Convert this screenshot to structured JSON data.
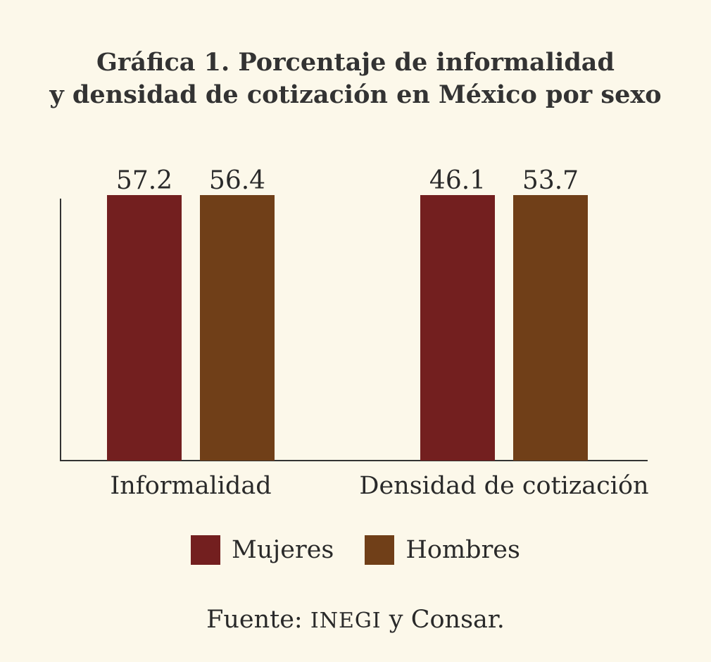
{
  "title_line1": "Gráfica 1. Porcentaje de informalidad",
  "title_line2": "y densidad de cotización en México por sexo",
  "chart_data": {
    "type": "bar",
    "title": "Gráfica 1. Porcentaje de informalidad y densidad de cotización en México por sexo",
    "categories": [
      "Informalidad",
      "Densidad de cotización"
    ],
    "series": [
      {
        "name": "Mujeres",
        "color": "#731f1f",
        "values": [
          57.2,
          46.1
        ],
        "labels": [
          "57.2",
          "46.1"
        ]
      },
      {
        "name": "Hombres",
        "color": "#703f18",
        "values": [
          56.4,
          53.7
        ],
        "labels": [
          "56.4",
          "53.7"
        ]
      }
    ],
    "xlabel": "",
    "ylabel": "",
    "grid": false,
    "legend": "bottom-center"
  },
  "legend": {
    "mujeres": "Mujeres",
    "hombres": "Hombres"
  },
  "source": {
    "prefix": "Fuente: ",
    "org1": "INEGI",
    "middle": " y ",
    "org2": "Consar."
  }
}
